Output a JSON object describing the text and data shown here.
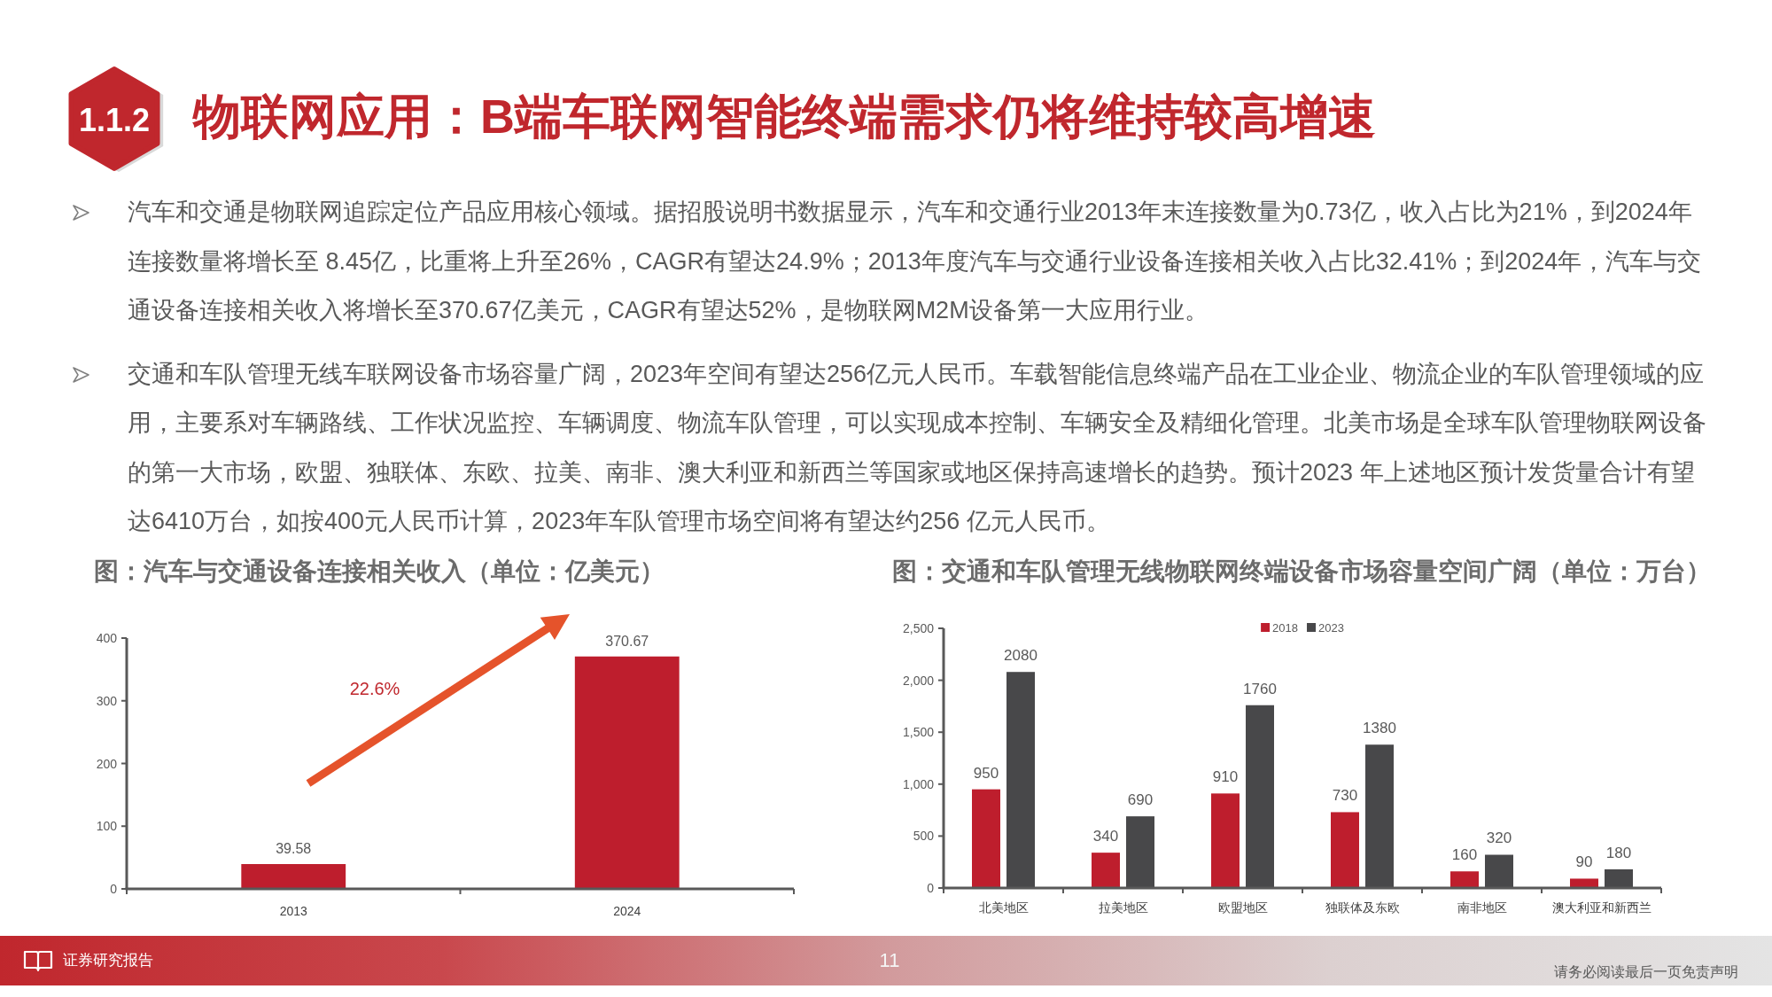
{
  "chart_data": [
    {
      "type": "other",
      "title": "物联网应用：B端车联网智能终端需求仍将维持较高增速",
      "annotations": [
        "1.1.2",
        "汽车和交通是物联网追踪定位产品应用核心领域。据招股说明书数据显示，汽车和交通行业2013年末连接数量为0.73亿，收入占比为21%，到2024年连接数量将增长至 8.45亿，比重将上升至26%，CAGR有望达24.9%；2013年度汽车与交通行业设备连接相关收入占比32.41%；到2024年，汽车与交通设备连接相关收入将增长至370.67亿美元，CAGR有望达52%，是物联网M2M设备第一大应用行业。",
        "交通和车队管理无线车联网设备市场容量广阔，2023年空间有望达256亿元人民币。车载智能信息终端产品在工业企业、物流企业的车队管理领域的应用，主要系对车辆路线、工作状况监控、车辆调度、物流车队管理，可以实现成本控制、车辆安全及精细化管理。北美市场是全球车队管理物联网设备的第一大市场，欧盟、独联体、东欧、拉美、南非、澳大利亚和新西兰等国家或地区保持高速增长的趋势。预计2023 年上述地区预计发货量合计有望达6410万台，如按400元人民币计算，2023年车队管理市场空间将有望达约256 亿元人民币。"
      ]
    },
    {
      "type": "bar",
      "title": "图：汽车与交通设备连接相关收入（单位：亿美元）",
      "categories": [
        "2013",
        "2024"
      ],
      "values": [
        39.58,
        370.67
      ],
      "color": "#be1e2d",
      "ylim": [
        0,
        400
      ],
      "yticks": [
        0,
        100,
        200,
        300,
        400
      ],
      "data_labels": true,
      "annotations": [
        "22.6%"
      ]
    },
    {
      "type": "bar",
      "title": "图：交通和车队管理无线物联网终端设备市场容量空间广阔（单位：万台）",
      "categories": [
        "北美地区",
        "拉美地区",
        "欧盟地区",
        "独联体及东欧",
        "南非地区",
        "澳大利亚和新西兰"
      ],
      "series": [
        {
          "name": "2018",
          "color": "#be1e2d",
          "values": [
            950,
            340,
            910,
            730,
            160,
            90
          ]
        },
        {
          "name": "2023",
          "color": "#48484a",
          "values": [
            2080,
            690,
            1760,
            1380,
            320,
            180
          ]
        }
      ],
      "ylim": [
        0,
        2500
      ],
      "yticks": [
        0,
        500,
        {
          "value": 1000,
          "label": "1,000"
        },
        {
          "value": 1500,
          "label": "1,500"
        },
        {
          "value": 2000,
          "label": "2,000"
        },
        {
          "value": 2500,
          "label": "2,500"
        }
      ],
      "legend": "top",
      "data_labels": true
    },
    {
      "type": "other",
      "annotations": [
        "证券研究报告",
        "11",
        "请务必阅读最后一页免责声明"
      ]
    }
  ]
}
